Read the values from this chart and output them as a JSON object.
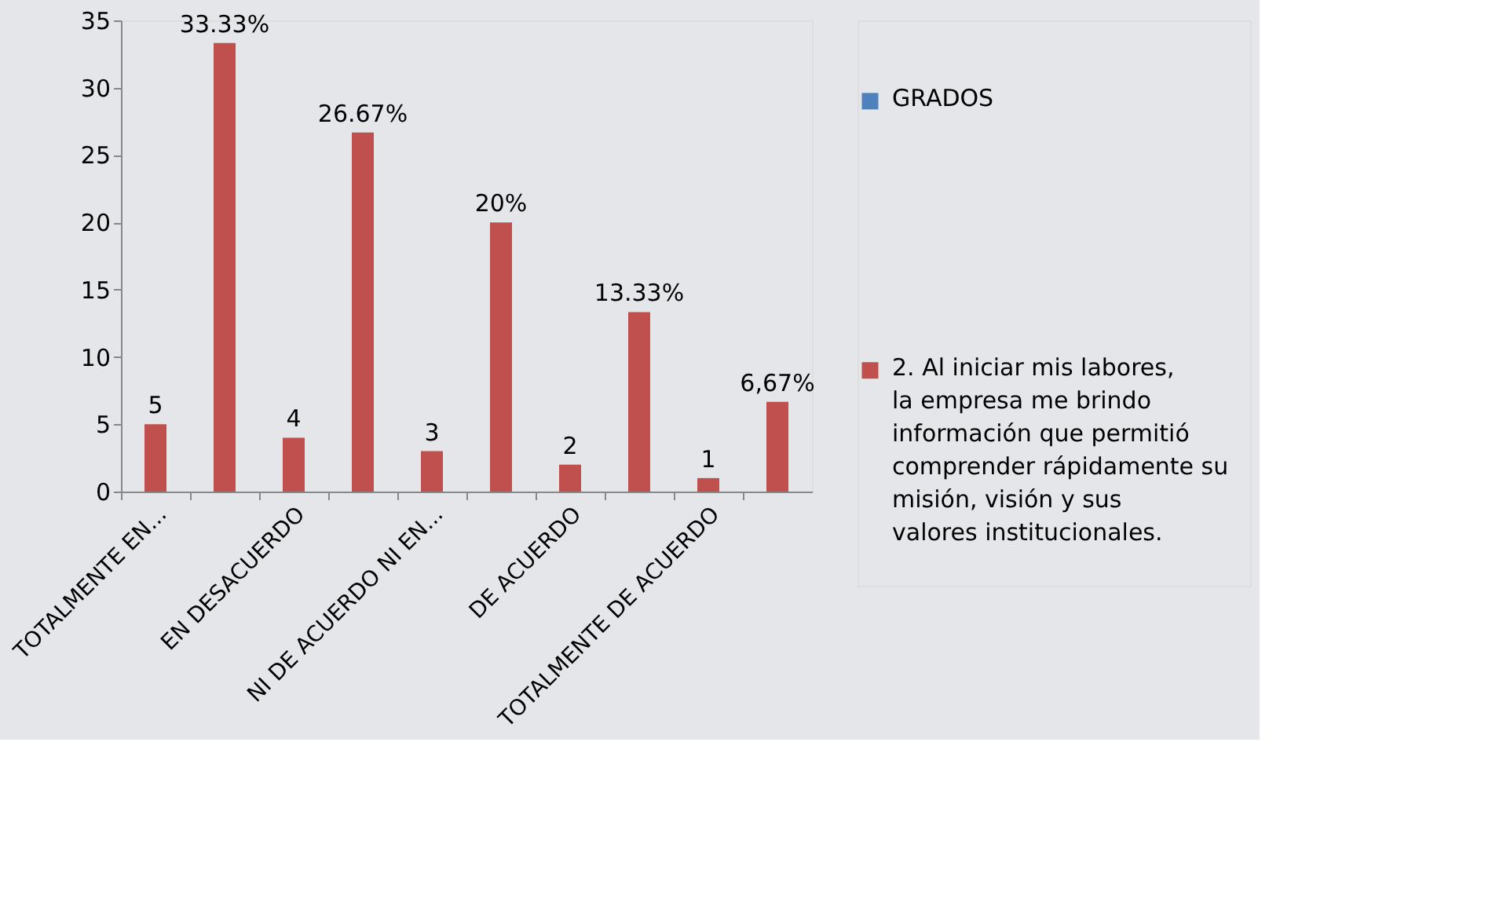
{
  "chart_data": {
    "type": "bar",
    "categories": [
      "TOTALMENTE EN...",
      null,
      "EN DESACUERDO",
      null,
      "NI DE ACUERDO NI EN...",
      null,
      "DE ACUERDO",
      null,
      "TOTALMENTE DE ACUERDO",
      null
    ],
    "series": [
      {
        "name": "GRADOS",
        "color": "#4f81bd",
        "values": [
          null,
          null,
          null,
          null,
          null,
          null,
          null,
          null,
          null,
          null
        ]
      },
      {
        "name": "2. Al iniciar mis labores, la empresa me brindo información que permitió comprender rápidamente su misión, visión y sus valores institucionales.",
        "color": "#c0504d",
        "values": [
          5,
          33.33,
          4,
          26.67,
          3,
          20,
          2,
          13.33,
          1,
          6.67
        ],
        "value_labels": [
          "5",
          "33.33%",
          "4",
          "26.67%",
          "3",
          "20%",
          "2",
          "13.33%",
          "1",
          "6,67%"
        ]
      }
    ],
    "ylim": [
      0,
      35
    ],
    "yticks": [
      0,
      5,
      10,
      15,
      20,
      25,
      30,
      35
    ],
    "grid": false,
    "legend": "right"
  }
}
